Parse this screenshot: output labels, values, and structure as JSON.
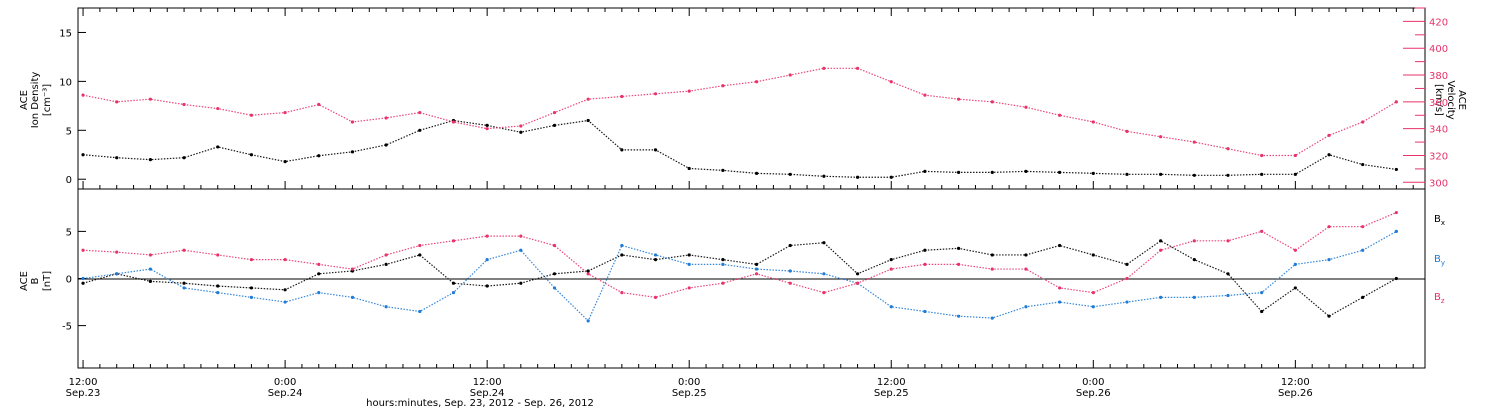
{
  "colors": {
    "black": "#000000",
    "red": "#e8336a",
    "blue": "#1f7bd6"
  },
  "chart_data": [
    {
      "type": "scatter",
      "panel": "top",
      "ylabel_left": [
        "ACE",
        "Ion Density",
        "[cm⁻³]"
      ],
      "ylabel_right": [
        "ACE",
        "Velocity",
        "[km/s]"
      ],
      "ylim_left": [
        -1,
        17.5
      ],
      "ylim_right": [
        295,
        430
      ],
      "yticks_left": [
        0,
        5,
        10,
        15
      ],
      "yticks_right": [
        300,
        320,
        340,
        360,
        380,
        400,
        420
      ],
      "x_range_hours": [
        -0.3,
        79.7
      ],
      "series": [
        {
          "name": "Ion Density",
          "color": "#000000",
          "axis": "left",
          "x": [
            0,
            2,
            4,
            6,
            8,
            10,
            12,
            14,
            16,
            18,
            20,
            22,
            24,
            26,
            28,
            30,
            32,
            34,
            36,
            38,
            40,
            42,
            44,
            46,
            48,
            50,
            52,
            54,
            56,
            58,
            60,
            62,
            64,
            66,
            68,
            70,
            72,
            74,
            76,
            78
          ],
          "y": [
            2.5,
            2.2,
            2.0,
            2.2,
            3.3,
            2.5,
            1.8,
            2.4,
            2.8,
            3.5,
            5.0,
            6.0,
            5.5,
            4.8,
            5.5,
            6.0,
            3.0,
            3.0,
            1.1,
            0.9,
            0.6,
            0.5,
            0.3,
            0.2,
            0.2,
            0.8,
            0.7,
            0.7,
            0.8,
            0.7,
            0.6,
            0.5,
            0.5,
            0.4,
            0.4,
            0.5,
            0.5,
            2.5,
            1.5,
            1.0
          ]
        },
        {
          "name": "Velocity",
          "color": "#e8336a",
          "axis": "right",
          "x": [
            0,
            2,
            4,
            6,
            8,
            10,
            12,
            14,
            16,
            18,
            20,
            22,
            24,
            26,
            28,
            30,
            32,
            34,
            36,
            38,
            40,
            42,
            44,
            46,
            48,
            50,
            52,
            54,
            56,
            58,
            60,
            62,
            64,
            66,
            68,
            70,
            72,
            74,
            76,
            78
          ],
          "y": [
            365,
            360,
            362,
            358,
            355,
            350,
            352,
            358,
            345,
            348,
            352,
            345,
            340,
            342,
            352,
            362,
            364,
            366,
            368,
            372,
            375,
            380,
            385,
            385,
            375,
            365,
            362,
            360,
            356,
            350,
            345,
            338,
            334,
            330,
            325,
            320,
            320,
            335,
            345,
            360
          ]
        }
      ]
    },
    {
      "type": "scatter",
      "panel": "bottom",
      "ylabel": [
        "ACE",
        "B",
        "[nT]"
      ],
      "ylim": [
        -9.5,
        9.5
      ],
      "yticks": [
        -5,
        0,
        5
      ],
      "x_range_hours": [
        -0.3,
        79.7
      ],
      "zero_line": true,
      "series": [
        {
          "name": "Bx",
          "color": "#000000",
          "x": [
            0,
            2,
            4,
            6,
            8,
            10,
            12,
            14,
            16,
            18,
            20,
            22,
            24,
            26,
            28,
            30,
            32,
            34,
            36,
            38,
            40,
            42,
            44,
            46,
            48,
            50,
            52,
            54,
            56,
            58,
            60,
            62,
            64,
            66,
            68,
            70,
            72,
            74,
            76,
            78
          ],
          "y": [
            -0.5,
            0.5,
            -0.3,
            -0.5,
            -0.8,
            -1.0,
            -1.2,
            0.5,
            0.8,
            1.5,
            2.5,
            -0.5,
            -0.8,
            -0.5,
            0.5,
            0.8,
            2.5,
            2.0,
            2.5,
            2.0,
            1.5,
            3.5,
            3.8,
            0.5,
            2.0,
            3.0,
            3.2,
            2.5,
            2.5,
            3.5,
            2.5,
            1.5,
            4.0,
            2.0,
            0.5,
            -3.5,
            -1.0,
            -4.0,
            -2.0,
            0.0
          ]
        },
        {
          "name": "By",
          "color": "#1f7bd6",
          "x": [
            0,
            2,
            4,
            6,
            8,
            10,
            12,
            14,
            16,
            18,
            20,
            22,
            24,
            26,
            28,
            30,
            32,
            34,
            36,
            38,
            40,
            42,
            44,
            46,
            48,
            50,
            52,
            54,
            56,
            58,
            60,
            62,
            64,
            66,
            68,
            70,
            72,
            74,
            76,
            78
          ],
          "y": [
            0.0,
            0.5,
            1.0,
            -1.0,
            -1.5,
            -2.0,
            -2.5,
            -1.5,
            -2.0,
            -3.0,
            -3.5,
            -1.5,
            2.0,
            3.0,
            -1.0,
            -4.5,
            3.5,
            2.5,
            1.5,
            1.5,
            1.0,
            0.8,
            0.5,
            -0.5,
            -3.0,
            -3.5,
            -4.0,
            -4.2,
            -3.0,
            -2.5,
            -3.0,
            -2.5,
            -2.0,
            -2.0,
            -1.8,
            -1.5,
            1.5,
            2.0,
            3.0,
            5.0
          ]
        },
        {
          "name": "Bz",
          "color": "#e8336a",
          "x": [
            0,
            2,
            4,
            6,
            8,
            10,
            12,
            14,
            16,
            18,
            20,
            22,
            24,
            26,
            28,
            30,
            32,
            34,
            36,
            38,
            40,
            42,
            44,
            46,
            48,
            50,
            52,
            54,
            56,
            58,
            60,
            62,
            64,
            66,
            68,
            70,
            72,
            74,
            76,
            78
          ],
          "y": [
            3.0,
            2.8,
            2.5,
            3.0,
            2.5,
            2.0,
            2.0,
            1.5,
            1.0,
            2.5,
            3.5,
            4.0,
            4.5,
            4.5,
            3.5,
            0.5,
            -1.5,
            -2.0,
            -1.0,
            -0.5,
            0.5,
            -0.5,
            -1.5,
            -0.5,
            1.0,
            1.5,
            1.5,
            1.0,
            1.0,
            -1.0,
            -1.5,
            0.0,
            3.0,
            4.0,
            4.0,
            5.0,
            3.0,
            5.5,
            5.5,
            7.0
          ]
        }
      ],
      "legend": [
        "Bx",
        "By",
        "Bz"
      ],
      "legend_placement": "right"
    }
  ],
  "x_axis": {
    "tick_labels": [
      {
        "hour": 0,
        "time": "12:00",
        "date": "Sep.23"
      },
      {
        "hour": 12,
        "time": "0:00",
        "date": "Sep.24"
      },
      {
        "hour": 24,
        "time": "12:00",
        "date": "Sep.24"
      },
      {
        "hour": 36,
        "time": "0:00",
        "date": "Sep.25"
      },
      {
        "hour": 48,
        "time": "12:00",
        "date": "Sep.25"
      },
      {
        "hour": 60,
        "time": "0:00",
        "date": "Sep.26"
      },
      {
        "hour": 72,
        "time": "12:00",
        "date": "Sep.26"
      }
    ],
    "xlabel": "hours:minutes, Sep. 23, 2012 - Sep. 26, 2012"
  },
  "legend_labels": {
    "bx_main": "B",
    "bx_sub": "x",
    "by_main": "B",
    "by_sub": "y",
    "bz_main": "B",
    "bz_sub": "z"
  }
}
